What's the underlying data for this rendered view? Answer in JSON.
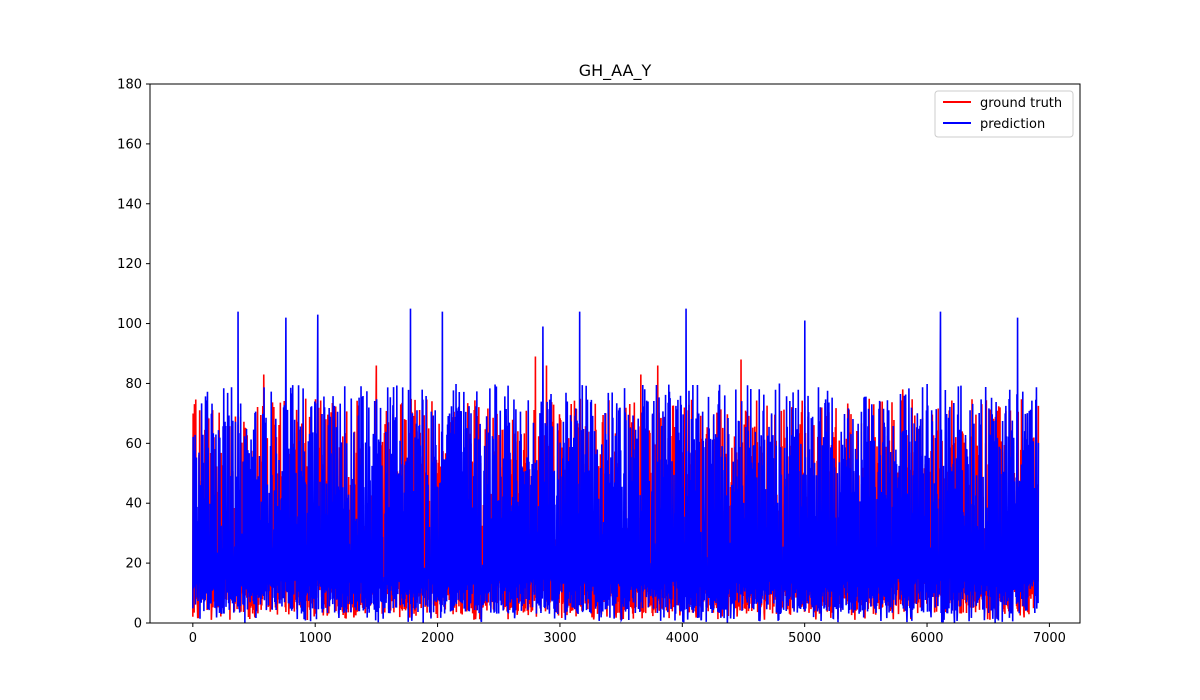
{
  "chart_data": {
    "type": "line",
    "title": "GH_AA_Y",
    "xlabel": "",
    "ylabel": "",
    "xlim": [
      -350,
      7250
    ],
    "ylim": [
      0,
      180
    ],
    "x_ticks": [
      0,
      1000,
      2000,
      3000,
      4000,
      5000,
      6000,
      7000
    ],
    "y_ticks": [
      0,
      20,
      40,
      60,
      80,
      100,
      120,
      140,
      160,
      180
    ],
    "x_range_data": [
      0,
      6910
    ],
    "grid": false,
    "legend_position": "top-right",
    "series": [
      {
        "name": "ground truth",
        "color": "#ff0000",
        "typical_range": [
          3,
          75
        ],
        "max": 89,
        "min": 1,
        "notable_peaks": [
          [
            580,
            83
          ],
          [
            1500,
            86
          ],
          [
            2800,
            89
          ],
          [
            2890,
            86
          ],
          [
            3660,
            83
          ],
          [
            3800,
            86
          ],
          [
            4480,
            88
          ],
          [
            5800,
            78
          ]
        ]
      },
      {
        "name": "prediction",
        "color": "#0000ff",
        "typical_range": [
          3,
          80
        ],
        "max": 105,
        "min": 0,
        "notable_peaks": [
          [
            370,
            104
          ],
          [
            760,
            102
          ],
          [
            1020,
            103
          ],
          [
            1780,
            105
          ],
          [
            2040,
            104
          ],
          [
            2860,
            99
          ],
          [
            3160,
            104
          ],
          [
            4030,
            105
          ],
          [
            5000,
            101
          ],
          [
            6110,
            104
          ],
          [
            6740,
            102
          ]
        ]
      }
    ]
  }
}
